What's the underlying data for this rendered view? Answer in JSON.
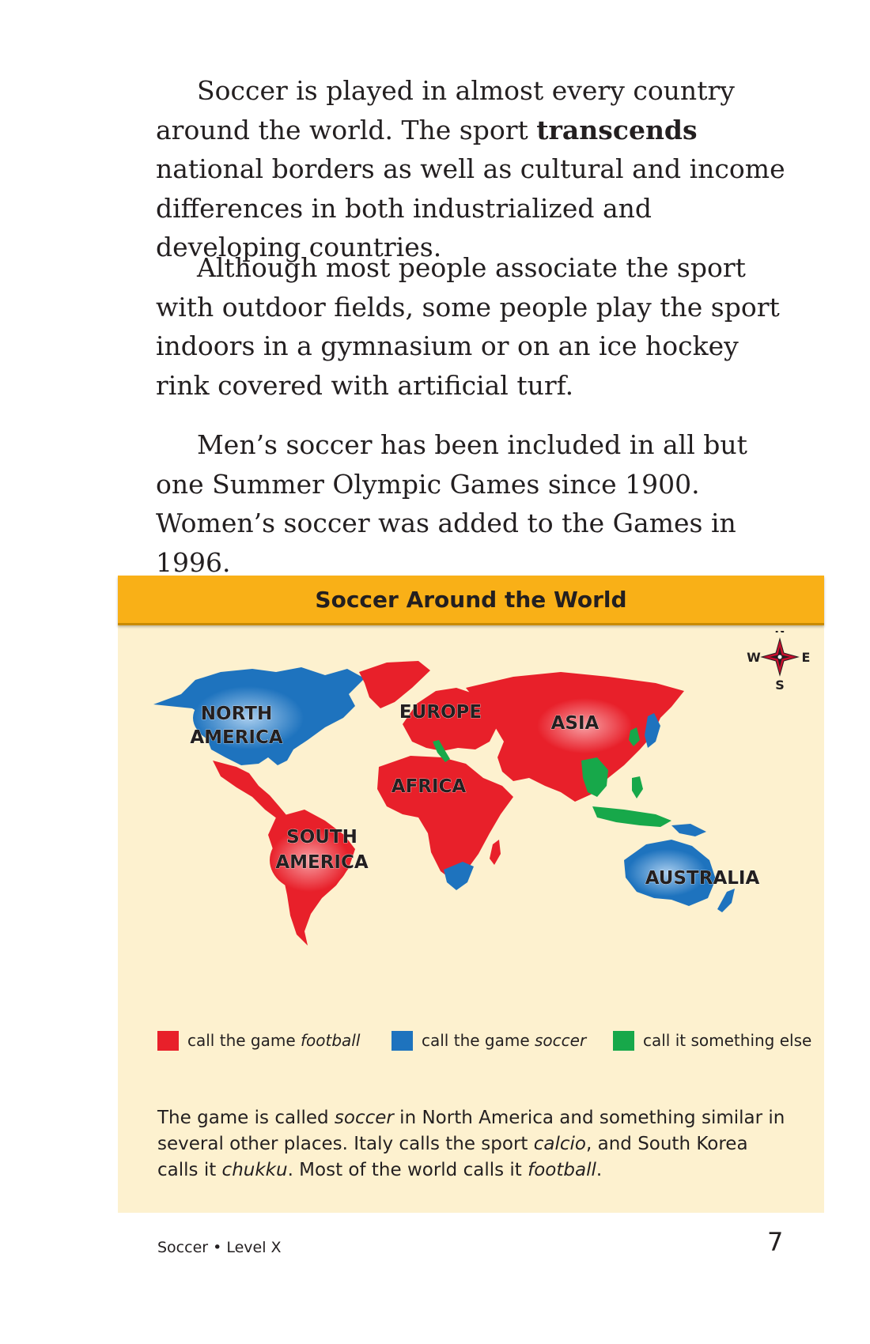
{
  "paragraphs": {
    "p1": {
      "before": "Soccer is played in almost every country around the world. The sport ",
      "bold": "transcends",
      "after": " national borders as well as cultural and income differences in both industrialized and developing countries."
    },
    "p2": "Although most people associate the sport with outdoor fields, some people play the sport indoors in a gymnasium or on an ice hockey rink covered with artificial turf.",
    "p3": "Men’s soccer has been included in all but one Summer Olympic Games since 1900. Women’s soccer was added to the Games in 1996."
  },
  "map": {
    "title": "Soccer Around the World",
    "labels": {
      "north_america_1": "NORTH",
      "north_america_2": "AMERICA",
      "south_america_1": "SOUTH",
      "south_america_2": "AMERICA",
      "europe": "EUROPE",
      "asia": "ASIA",
      "africa": "AFRICA",
      "australia": "AUSTRALIA"
    },
    "compass": {
      "n": "N",
      "s": "S",
      "e": "E",
      "w": "W"
    },
    "colors": {
      "football": "#e8202a",
      "soccer": "#1e73be",
      "else": "#17a84a",
      "background": "#fdf1cf",
      "header": "#f9b017"
    },
    "legend": {
      "football": {
        "prefix": "call the game ",
        "term": "football"
      },
      "soccer": {
        "prefix": "call the game ",
        "term": "soccer"
      },
      "else": {
        "text": "call it something else"
      }
    },
    "caption": {
      "s1": "The game is called ",
      "t1": "soccer",
      "s2": " in North America and something similar in several other places. Italy calls the sport ",
      "t2": "calcio",
      "s3": ", and South Korea calls it ",
      "t3": "chukku",
      "s4": ". Most of the world calls it ",
      "t4": "football",
      "s5": "."
    }
  },
  "footer": {
    "left": "Soccer • Level X",
    "page": "7"
  }
}
